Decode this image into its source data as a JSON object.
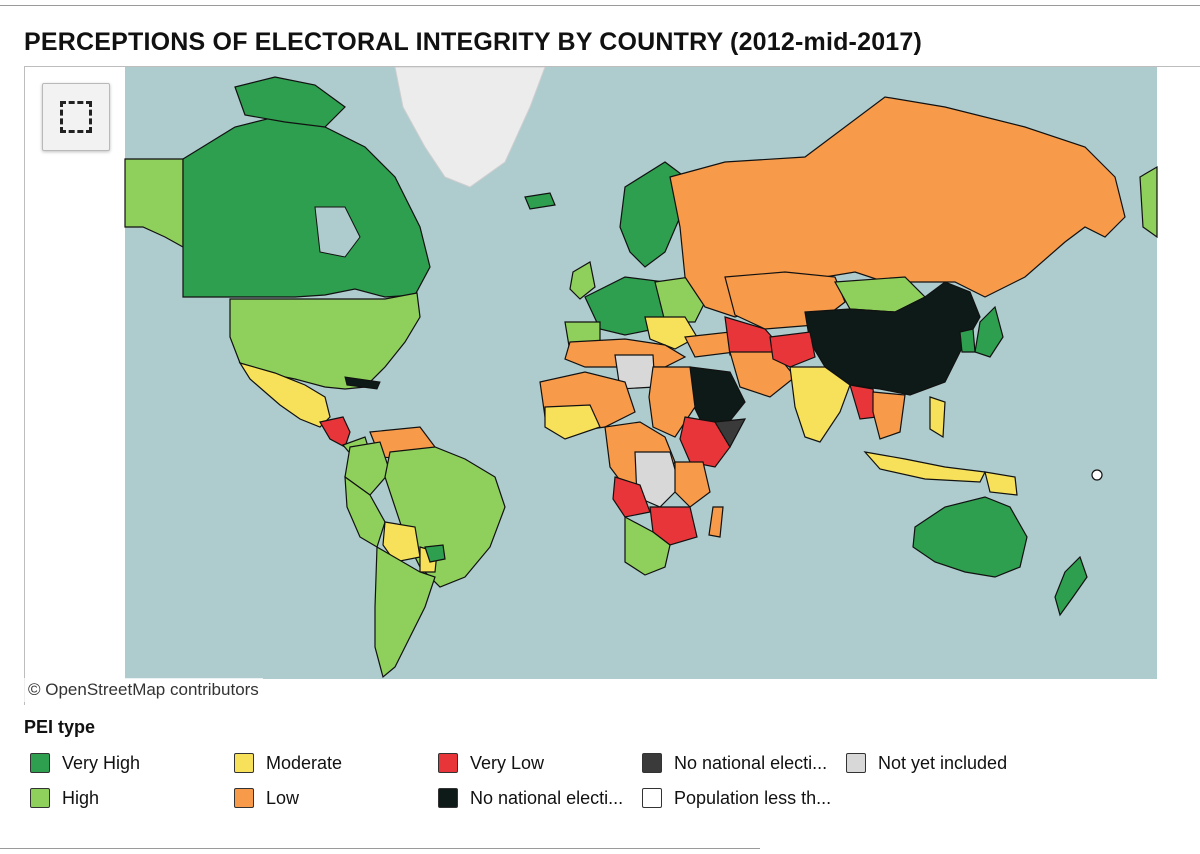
{
  "title": "PERCEPTIONS OF ELECTORAL INTEGRITY BY COUNTRY (2012-mid-2017)",
  "map": {
    "attribution": "© OpenStreetMap contributors",
    "select_tool_icon": "rectangular-select-icon",
    "ocean_color": "#aecbcd",
    "ice_color": "#ececec"
  },
  "legend": {
    "title": "PEI type",
    "items": [
      {
        "label": "Very High",
        "color": "#2e9e4f"
      },
      {
        "label": "High",
        "color": "#8fd05c"
      },
      {
        "label": "Moderate",
        "color": "#f8e15a"
      },
      {
        "label": "Low",
        "color": "#f79a4a"
      },
      {
        "label": "Very Low",
        "color": "#e8353a"
      },
      {
        "label": "No national electi...",
        "color": "#3a3a3a"
      },
      {
        "label": "No national electi...",
        "color": "#0e1a17"
      },
      {
        "label": "Population less th...",
        "color": "#ffffff"
      },
      {
        "label": "Not yet included",
        "color": "#d8d8d8"
      }
    ]
  }
}
